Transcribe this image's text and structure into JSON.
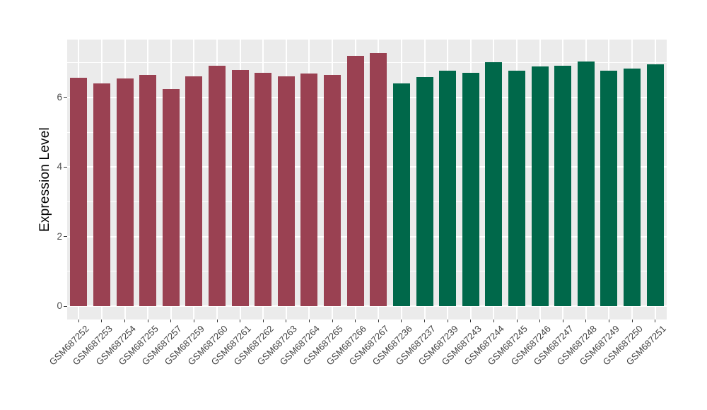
{
  "chart_data": {
    "type": "bar",
    "title": "",
    "xlabel": "",
    "ylabel": "Expression Level",
    "ylim": [
      -0.39,
      7.67
    ],
    "yticks": [
      0,
      2,
      4,
      6
    ],
    "yticks_minor": [
      1,
      3,
      5,
      7
    ],
    "grid": "major and minor horizontal white gridlines, vertical white gridline at each category center, ggplot-style gray panel",
    "legend_position": "none",
    "bar_width_fraction": 0.73,
    "series": [
      {
        "name": "group-maroon",
        "color": "#9A4152",
        "categories": [
          "GSM687252",
          "GSM687253",
          "GSM687254",
          "GSM687255",
          "GSM687257",
          "GSM687259",
          "GSM687260",
          "GSM687261",
          "GSM687262",
          "GSM687263",
          "GSM687264",
          "GSM687265",
          "GSM687266",
          "GSM687267"
        ],
        "values": [
          6.57,
          6.41,
          6.55,
          6.66,
          6.24,
          6.6,
          6.91,
          6.8,
          6.72,
          6.61,
          6.7,
          6.65,
          7.2,
          7.29
        ]
      },
      {
        "name": "group-green",
        "color": "#00684A",
        "categories": [
          "GSM687236",
          "GSM687237",
          "GSM687239",
          "GSM687243",
          "GSM687244",
          "GSM687245",
          "GSM687246",
          "GSM687247",
          "GSM687248",
          "GSM687249",
          "GSM687250",
          "GSM687251"
        ],
        "values": [
          6.4,
          6.59,
          6.77,
          6.71,
          7.01,
          6.77,
          6.9,
          6.92,
          7.04,
          6.77,
          6.83,
          6.96
        ]
      }
    ],
    "style": {
      "panel_background": "#EBEBEB",
      "grid_color": "#FFFFFF",
      "tick_color": "#333333",
      "y_label_color": "#4D4D4D",
      "x_label_color": "#404040",
      "axis_title_color": "#000000",
      "figure_background": "#FFFFFF"
    }
  }
}
